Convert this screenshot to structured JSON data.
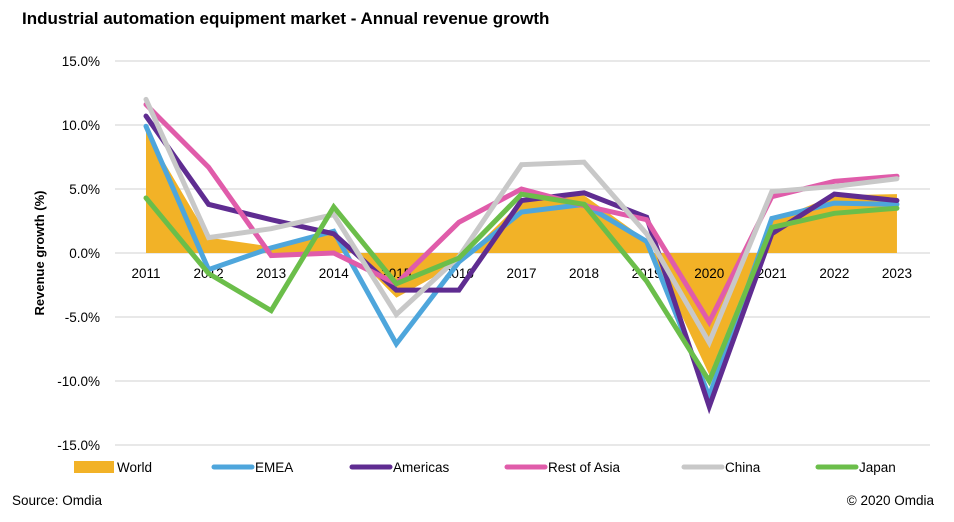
{
  "chart_data": {
    "type": "line",
    "title": "Industrial automation equipment market - Annual revenue growth",
    "xlabel": "",
    "ylabel": "Revenue growth (%)",
    "ylim": [
      -15,
      15
    ],
    "yticks": [
      15,
      10,
      5,
      0,
      -5,
      -10,
      -15
    ],
    "ytick_labels": [
      "15.0%",
      "10.0%",
      "5.0%",
      "0.0%",
      "-5.0%",
      "-10.0%",
      "-15.0%"
    ],
    "grid": true,
    "legend_position": "bottom",
    "categories": [
      "2011",
      "2012",
      "2013",
      "2014",
      "2015",
      "2016",
      "2017",
      "2018",
      "2019",
      "2020",
      "2021",
      "2022",
      "2023"
    ],
    "series": [
      {
        "name": "World",
        "render": "area",
        "color": "#F2B227",
        "values": [
          9.5,
          1.2,
          0.5,
          1.5,
          -3.5,
          -0.8,
          4.0,
          4.5,
          1.0,
          -9.5,
          2.5,
          4.5,
          4.6
        ]
      },
      {
        "name": "EMEA",
        "render": "line",
        "color": "#4EA6DC",
        "values": [
          9.9,
          -1.3,
          0.4,
          1.7,
          -7.1,
          -0.7,
          3.2,
          3.8,
          0.9,
          -11.2,
          2.7,
          3.9,
          3.8
        ]
      },
      {
        "name": "Americas",
        "render": "line",
        "color": "#5F2C91",
        "values": [
          10.7,
          3.8,
          2.6,
          1.5,
          -2.9,
          -2.9,
          4.1,
          4.7,
          2.8,
          -12.0,
          1.5,
          4.6,
          4.1
        ]
      },
      {
        "name": "Rest of Asia",
        "render": "line",
        "color": "#E05CAA",
        "values": [
          11.6,
          6.7,
          -0.2,
          0.0,
          -2.4,
          2.4,
          5.0,
          3.7,
          2.6,
          -5.4,
          4.4,
          5.6,
          6.0
        ]
      },
      {
        "name": "China",
        "render": "line",
        "color": "#C8C8C8",
        "values": [
          12.0,
          1.2,
          1.9,
          3.0,
          -4.8,
          -0.3,
          6.9,
          7.1,
          1.5,
          -7.0,
          4.8,
          5.2,
          5.8
        ]
      },
      {
        "name": "Japan",
        "render": "line",
        "color": "#6BBE4A",
        "values": [
          4.3,
          -1.6,
          -4.5,
          3.6,
          -2.4,
          -0.4,
          4.6,
          3.8,
          -2.2,
          -10.0,
          2.0,
          3.1,
          3.5
        ]
      }
    ]
  },
  "footer": {
    "source": "Source: Omdia",
    "copyright": "© 2020 Omdia"
  }
}
